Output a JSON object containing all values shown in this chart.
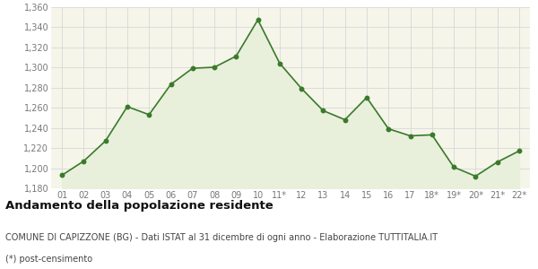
{
  "x_labels": [
    "01",
    "02",
    "03",
    "04",
    "05",
    "06",
    "07",
    "08",
    "09",
    "10",
    "11*",
    "12",
    "13",
    "14",
    "15",
    "16",
    "17",
    "18*",
    "19*",
    "20*",
    "21*",
    "22*"
  ],
  "values": [
    1193,
    1207,
    1227,
    1261,
    1253,
    1283,
    1299,
    1300,
    1311,
    1347,
    1304,
    1279,
    1257,
    1248,
    1270,
    1239,
    1232,
    1233,
    1201,
    1192,
    1206,
    1217
  ],
  "line_color": "#3a7a2a",
  "fill_color": "#e8f0dc",
  "marker_color": "#3a7a2a",
  "bg_color": "#ffffff",
  "plot_bg_color": "#f5f5ea",
  "grid_color": "#d8d8d8",
  "ylim_min": 1180,
  "ylim_max": 1360,
  "ytick_step": 20,
  "title": "Andamento della popolazione residente",
  "subtitle": "COMUNE DI CAPIZZONE (BG) - Dati ISTAT al 31 dicembre di ogni anno - Elaborazione TUTTITALIA.IT",
  "footnote": "(*) post-censimento",
  "title_fontsize": 9.5,
  "subtitle_fontsize": 7.0,
  "footnote_fontsize": 7.0,
  "tick_fontsize": 7,
  "axis_label_color": "#777777"
}
